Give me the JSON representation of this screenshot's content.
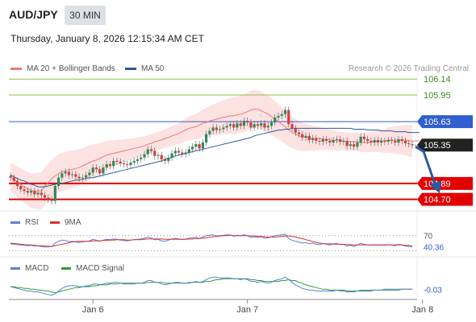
{
  "header": {
    "symbol": "AUD/JPY",
    "timeframe": "30 MIN",
    "timestamp": "Thursday, January 8, 2026 12:15:34 AM CET"
  },
  "legend": {
    "items": [
      {
        "label": "MA 20 + Bollinger Bands",
        "color": "#f07878"
      },
      {
        "label": "MA 50",
        "color": "#2c5aa0"
      }
    ],
    "credit": "Research © 2026 Trading Central"
  },
  "colors": {
    "up_candle": "#2e8b57",
    "down_candle": "#d93c3c",
    "bollinger_fill": "#fde2e2",
    "ma20": "#f07878",
    "ma50": "#2c5aa0",
    "resistance": "#8bc34a",
    "pivot": "#2f5fd0",
    "support": "#e00000",
    "forecast_arrow": "#2c5aa0",
    "last_price_label": "#222222",
    "rsi": "#5b7fd6",
    "rsi_ma": "#d83030",
    "macd": "#5b7fd6",
    "macd_signal": "#2e9e2e"
  },
  "chart_data": [
    {
      "type": "candlestick",
      "ylim": [
        104.6,
        106.2
      ],
      "x_tick_labels": [
        "Jan 6",
        "Jan 7",
        "Jan 8"
      ],
      "x_tick_positions": [
        24,
        69,
        120
      ],
      "last_price": 105.35,
      "forecast": "bearish arrow towards 104.70",
      "levels": [
        {
          "value": 106.14,
          "label": "106.14",
          "kind": "resistance"
        },
        {
          "value": 105.95,
          "label": "105.95",
          "kind": "resistance"
        },
        {
          "value": 105.63,
          "label": "105.63",
          "kind": "pivot"
        },
        {
          "value": 104.89,
          "label": "104.89",
          "kind": "support"
        },
        {
          "value": 104.7,
          "label": "104.70",
          "kind": "support"
        }
      ],
      "series": [
        {
          "name": "MA 20 + Bollinger Bands",
          "values": [
            104.97,
            104.94,
            104.91,
            104.88,
            104.85,
            104.83,
            104.8,
            104.8,
            104.8,
            104.8,
            104.86,
            104.9,
            104.95,
            104.98,
            105.01,
            105.03,
            105.04,
            105.05,
            105.06,
            105.07,
            105.08,
            105.1,
            105.12,
            105.14,
            105.16,
            105.17,
            105.19,
            105.21,
            105.23,
            105.24,
            105.25,
            105.26,
            105.27,
            105.28,
            105.29,
            105.3,
            105.31,
            105.32,
            105.33,
            105.34,
            105.36,
            105.37,
            105.39,
            105.4,
            105.41,
            105.43,
            105.44,
            105.46,
            105.47,
            105.49,
            105.51,
            105.53,
            105.55,
            105.56,
            105.57,
            105.59,
            105.61,
            105.62,
            105.64,
            105.65,
            105.66,
            105.67,
            105.68,
            105.69,
            105.7,
            105.7,
            105.71,
            105.72,
            105.73,
            105.75,
            105.77,
            105.78,
            105.78,
            105.76,
            105.74,
            105.72,
            105.69,
            105.66,
            105.63,
            105.6,
            105.57,
            105.53,
            105.5,
            105.48,
            105.46,
            105.45,
            105.44,
            105.44,
            105.43,
            105.43,
            105.43,
            105.42,
            105.42,
            105.41,
            105.41,
            105.4,
            105.4,
            105.4,
            105.39,
            105.39,
            105.39,
            105.39,
            105.38,
            105.38,
            105.38,
            105.39,
            105.39,
            105.4,
            105.4,
            105.4,
            105.41,
            105.41,
            105.41,
            105.41,
            105.41,
            105.41,
            105.4,
            105.4,
            105.4,
            105.4
          ]
        },
        {
          "name": "MA 50",
          "values": [
            104.99,
            104.97,
            104.95,
            104.93,
            104.92,
            104.9,
            104.88,
            104.87,
            104.85,
            104.85,
            104.85,
            104.86,
            104.87,
            104.88,
            104.89,
            104.89,
            104.9,
            104.91,
            104.92,
            104.93,
            104.93,
            104.94,
            104.95,
            104.96,
            104.96,
            104.97,
            104.98,
            104.99,
            105.0,
            105.01,
            105.02,
            105.03,
            105.04,
            105.05,
            105.06,
            105.07,
            105.08,
            105.09,
            105.1,
            105.11,
            105.12,
            105.13,
            105.14,
            105.15,
            105.16,
            105.18,
            105.19,
            105.2,
            105.22,
            105.23,
            105.24,
            105.25,
            105.26,
            105.27,
            105.28,
            105.29,
            105.3,
            105.31,
            105.32,
            105.33,
            105.34,
            105.35,
            105.36,
            105.37,
            105.38,
            105.39,
            105.4,
            105.41,
            105.42,
            105.43,
            105.44,
            105.46,
            105.47,
            105.48,
            105.49,
            105.5,
            105.51,
            105.52,
            105.53,
            105.53,
            105.54,
            105.54,
            105.55,
            105.55,
            105.55,
            105.55,
            105.55,
            105.55,
            105.55,
            105.55,
            105.55,
            105.55,
            105.55,
            105.55,
            105.55,
            105.55,
            105.55,
            105.55,
            105.55,
            105.55,
            105.54,
            105.54,
            105.54,
            105.54,
            105.53,
            105.53,
            105.53,
            105.53,
            105.52,
            105.52,
            105.52,
            105.52,
            105.51,
            105.51,
            105.51,
            105.51,
            105.5,
            105.5,
            105.5,
            105.5
          ]
        }
      ],
      "closes": [
        104.96,
        104.92,
        104.86,
        104.82,
        104.8,
        104.78,
        104.8,
        104.76,
        104.78,
        104.75,
        104.72,
        104.7,
        104.68,
        104.86,
        104.96,
        105.01,
        105.03,
        104.99,
        105.0,
        104.97,
        104.95,
        104.96,
        104.99,
        105.02,
        105.08,
        105.06,
        105.01,
        105.08,
        105.12,
        105.1,
        105.16,
        105.15,
        105.13,
        105.12,
        105.11,
        105.14,
        105.16,
        105.18,
        105.2,
        105.24,
        105.3,
        105.28,
        105.22,
        105.23,
        105.18,
        105.16,
        105.2,
        105.25,
        105.28,
        105.26,
        105.24,
        105.26,
        105.3,
        105.33,
        105.36,
        105.31,
        105.38,
        105.48,
        105.52,
        105.56,
        105.53,
        105.54,
        105.56,
        105.58,
        105.6,
        105.56,
        105.61,
        105.58,
        105.64,
        105.62,
        105.56,
        105.6,
        105.58,
        105.61,
        105.56,
        105.58,
        105.62,
        105.68,
        105.7,
        105.72,
        105.77,
        105.6,
        105.55,
        105.5,
        105.48,
        105.44,
        105.46,
        105.41,
        105.43,
        105.4,
        105.39,
        105.42,
        105.4,
        105.38,
        105.41,
        105.42,
        105.39,
        105.4,
        105.34,
        105.36,
        105.33,
        105.38,
        105.45,
        105.42,
        105.4,
        105.38,
        105.41,
        105.38,
        105.4,
        105.39,
        105.41,
        105.4,
        105.38,
        105.42,
        105.4,
        105.37,
        105.36,
        105.35
      ]
    },
    {
      "type": "line",
      "title": "RSI",
      "ylim": [
        20,
        80
      ],
      "tick_labels": [
        "70",
        "40.36"
      ],
      "series": [
        {
          "name": "RSI",
          "values": [
            48,
            47,
            46,
            45,
            44,
            43,
            44,
            42,
            43,
            41,
            40,
            40,
            41,
            50,
            55,
            58,
            57,
            54,
            55,
            53,
            52,
            53,
            55,
            56,
            60,
            58,
            55,
            58,
            60,
            59,
            61,
            60,
            58,
            57,
            56,
            58,
            59,
            60,
            61,
            63,
            66,
            64,
            59,
            60,
            56,
            55,
            58,
            61,
            63,
            61,
            59,
            61,
            63,
            64,
            66,
            62,
            66,
            70,
            71,
            72,
            69,
            70,
            71,
            72,
            72,
            68,
            71,
            69,
            72,
            70,
            65,
            67,
            65,
            67,
            63,
            64,
            67,
            70,
            71,
            72,
            74,
            62,
            58,
            55,
            53,
            50,
            52,
            48,
            50,
            47,
            46,
            49,
            47,
            45,
            48,
            49,
            46,
            47,
            42,
            44,
            41,
            45,
            50,
            47,
            45,
            44,
            46,
            44,
            45,
            44,
            46,
            45,
            43,
            47,
            45,
            42,
            41,
            40
          ]
        },
        {
          "name": "9MA",
          "values": [
            50,
            49,
            48,
            47,
            46,
            45,
            45,
            44,
            43,
            43,
            42,
            42,
            41,
            43,
            45,
            47,
            49,
            51,
            53,
            54,
            55,
            55,
            55,
            55,
            56,
            56,
            56,
            57,
            57,
            58,
            58,
            59,
            59,
            59,
            58,
            58,
            59,
            59,
            59,
            60,
            61,
            61,
            61,
            61,
            61,
            60,
            60,
            60,
            60,
            60,
            60,
            60,
            61,
            61,
            62,
            62,
            63,
            64,
            66,
            67,
            68,
            69,
            70,
            70,
            71,
            70,
            70,
            70,
            70,
            70,
            69,
            69,
            68,
            68,
            67,
            66,
            66,
            66,
            67,
            68,
            69,
            69,
            68,
            66,
            64,
            62,
            59,
            57,
            54,
            52,
            50,
            49,
            48,
            48,
            47,
            47,
            47,
            47,
            46,
            46,
            45,
            45,
            45,
            45,
            45,
            45,
            45,
            45,
            45,
            45,
            45,
            45,
            45,
            45,
            45,
            44,
            44,
            43
          ]
        }
      ]
    },
    {
      "type": "line",
      "title": "MACD",
      "tick_labels": [
        "-0.03"
      ],
      "series": [
        {
          "name": "MACD",
          "values": [
            0.0,
            -0.01,
            -0.02,
            -0.03,
            -0.04,
            -0.05,
            -0.05,
            -0.06,
            -0.06,
            -0.07,
            -0.08,
            -0.09,
            -0.1,
            -0.08,
            -0.05,
            -0.02,
            0.0,
            0.01,
            0.01,
            0.01,
            0.0,
            0.0,
            0.01,
            0.01,
            0.03,
            0.03,
            0.02,
            0.03,
            0.04,
            0.04,
            0.05,
            0.05,
            0.04,
            0.03,
            0.03,
            0.03,
            0.03,
            0.04,
            0.04,
            0.05,
            0.07,
            0.07,
            0.05,
            0.05,
            0.03,
            0.02,
            0.03,
            0.04,
            0.05,
            0.05,
            0.04,
            0.04,
            0.05,
            0.05,
            0.06,
            0.05,
            0.06,
            0.08,
            0.1,
            0.11,
            0.11,
            0.1,
            0.1,
            0.1,
            0.1,
            0.09,
            0.09,
            0.08,
            0.09,
            0.08,
            0.06,
            0.06,
            0.05,
            0.06,
            0.05,
            0.04,
            0.05,
            0.07,
            0.08,
            0.09,
            0.11,
            0.08,
            0.05,
            0.02,
            0.0,
            -0.02,
            -0.03,
            -0.04,
            -0.04,
            -0.05,
            -0.05,
            -0.05,
            -0.05,
            -0.05,
            -0.05,
            -0.04,
            -0.05,
            -0.05,
            -0.06,
            -0.06,
            -0.06,
            -0.05,
            -0.04,
            -0.04,
            -0.04,
            -0.04,
            -0.04,
            -0.04,
            -0.04,
            -0.03,
            -0.03,
            -0.03,
            -0.03,
            -0.03,
            -0.03,
            -0.03,
            -0.03,
            -0.03
          ]
        },
        {
          "name": "MACD Signal",
          "values": [
            0.0,
            0.0,
            -0.01,
            -0.01,
            -0.02,
            -0.02,
            -0.03,
            -0.03,
            -0.04,
            -0.04,
            -0.05,
            -0.05,
            -0.06,
            -0.07,
            -0.06,
            -0.05,
            -0.04,
            -0.03,
            -0.02,
            -0.01,
            -0.01,
            0.0,
            0.0,
            0.0,
            0.01,
            0.01,
            0.02,
            0.02,
            0.02,
            0.03,
            0.03,
            0.03,
            0.04,
            0.04,
            0.04,
            0.04,
            0.04,
            0.04,
            0.04,
            0.04,
            0.05,
            0.05,
            0.05,
            0.05,
            0.05,
            0.04,
            0.04,
            0.04,
            0.04,
            0.04,
            0.04,
            0.04,
            0.04,
            0.05,
            0.05,
            0.05,
            0.05,
            0.06,
            0.06,
            0.07,
            0.08,
            0.08,
            0.09,
            0.09,
            0.09,
            0.09,
            0.09,
            0.09,
            0.09,
            0.09,
            0.08,
            0.08,
            0.07,
            0.07,
            0.06,
            0.06,
            0.06,
            0.06,
            0.06,
            0.07,
            0.07,
            0.08,
            0.07,
            0.07,
            0.05,
            0.04,
            0.02,
            0.01,
            0.0,
            -0.01,
            -0.02,
            -0.03,
            -0.03,
            -0.04,
            -0.04,
            -0.04,
            -0.04,
            -0.04,
            -0.05,
            -0.05,
            -0.05,
            -0.05,
            -0.05,
            -0.05,
            -0.05,
            -0.05,
            -0.04,
            -0.04,
            -0.04,
            -0.04,
            -0.04,
            -0.04,
            -0.04,
            -0.04,
            -0.03,
            -0.03,
            -0.03,
            -0.03
          ]
        }
      ]
    }
  ],
  "rsi_legend": [
    {
      "label": "RSI",
      "color": "#5b7fd6"
    },
    {
      "label": "9MA",
      "color": "#d83030"
    }
  ],
  "macd_legend": [
    {
      "label": "MACD",
      "color": "#5b7fd6"
    },
    {
      "label": "MACD Signal",
      "color": "#2e9e2e"
    }
  ]
}
